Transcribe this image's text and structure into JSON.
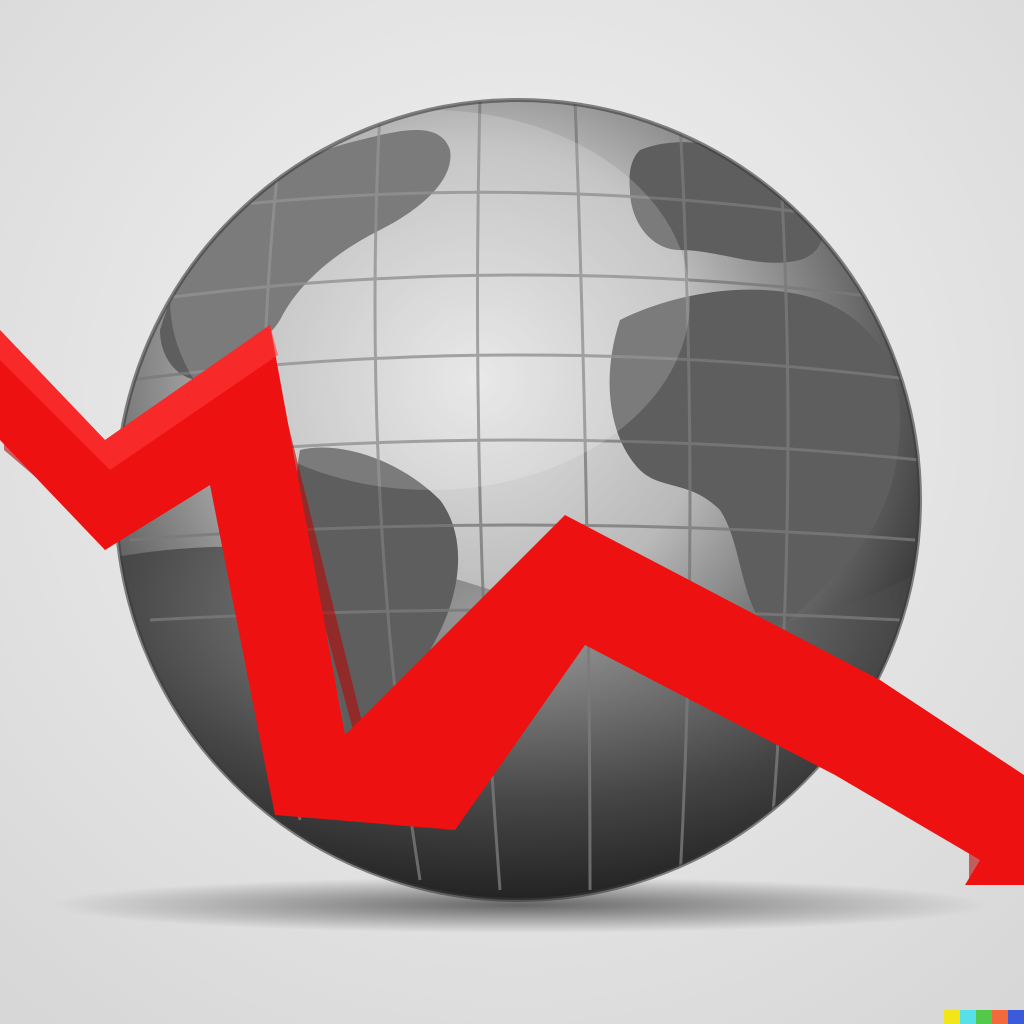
{
  "scene": {
    "subject": "globe",
    "overlay": "zigzag-downward-arrow",
    "colors": {
      "background": "#e6e6e6",
      "arrow": "#ee1111",
      "arrow_shade": "#b80909",
      "globe_dark": "#2b2b2b",
      "globe_light": "#d6d6d6",
      "land": "#5e5e5e"
    }
  },
  "watermark": {
    "colors": [
      "#f2e61a",
      "#58e0e8",
      "#52c94a",
      "#f26a3c",
      "#3b5bdb"
    ]
  }
}
